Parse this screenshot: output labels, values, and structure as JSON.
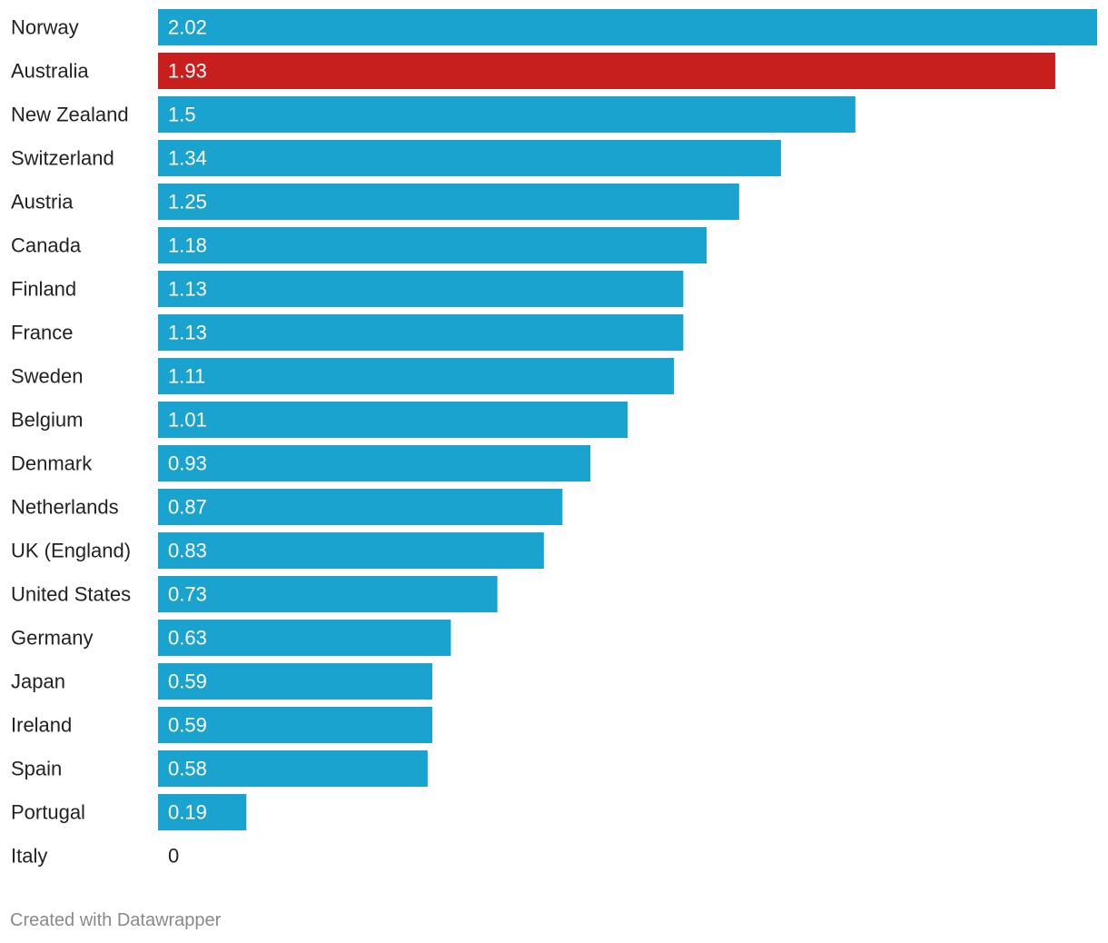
{
  "chart_data": {
    "type": "bar",
    "orientation": "horizontal",
    "categories": [
      "Norway",
      "Australia",
      "New Zealand",
      "Switzerland",
      "Austria",
      "Canada",
      "Finland",
      "France",
      "Sweden",
      "Belgium",
      "Denmark",
      "Netherlands",
      "UK (England)",
      "United States",
      "Germany",
      "Japan",
      "Ireland",
      "Spain",
      "Portugal",
      "Italy"
    ],
    "values": [
      2.02,
      1.93,
      1.5,
      1.34,
      1.25,
      1.18,
      1.13,
      1.13,
      1.11,
      1.01,
      0.93,
      0.87,
      0.83,
      0.73,
      0.63,
      0.59,
      0.59,
      0.58,
      0.19,
      0
    ],
    "value_labels": [
      "2.02",
      "1.93",
      "1.5",
      "1.34",
      "1.25",
      "1.18",
      "1.13",
      "1.13",
      "1.11",
      "1.01",
      "0.93",
      "0.87",
      "0.83",
      "0.73",
      "0.63",
      "0.59",
      "0.59",
      "0.58",
      "0.19",
      "0"
    ],
    "highlight": "Australia",
    "xlim": [
      0,
      2.02
    ],
    "grid": false,
    "title": "",
    "xlabel": "",
    "ylabel": ""
  },
  "colors": {
    "bar": "#1aa3cf",
    "highlight": "#c71e1e",
    "label_text": "#222222",
    "value_text_inside": "#ffffff",
    "value_text_outside": "#222222"
  },
  "footer": {
    "credit": "Created with Datawrapper"
  }
}
